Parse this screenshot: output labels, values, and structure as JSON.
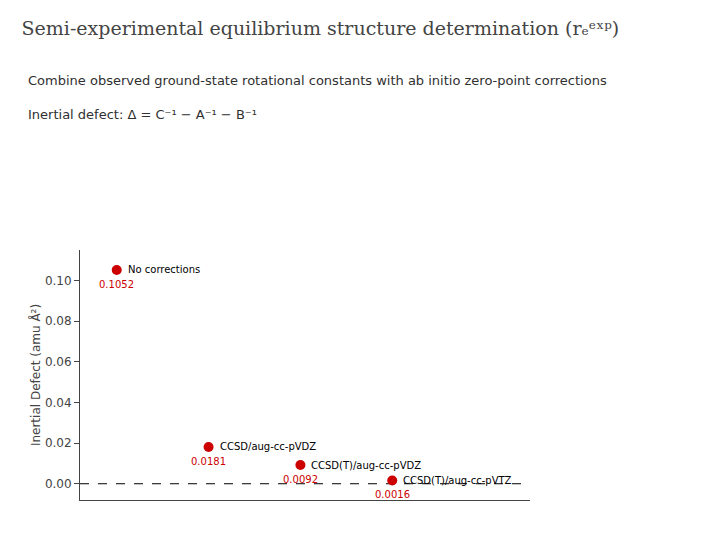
{
  "chart_data": {
    "type": "scatter",
    "title": "Semi-experimental equilibrium structure determination (rₑᵉˣᵖ)",
    "subtitle": [
      "Combine observed ground-state rotational constants with ab initio zero-point corrections",
      "Inertial defect: Δ = C⁻¹ − A⁻¹ − B⁻¹"
    ],
    "x": [
      1,
      2,
      3,
      4
    ],
    "values": [
      0.1052,
      0.0181,
      0.0092,
      0.0016
    ],
    "color": "#cc0000",
    "data_labels": true,
    "annotations": [
      {
        "text": "No corrections",
        "x": 1,
        "y": 0.1052
      },
      {
        "text": "CCSD/aug-cc-pVDZ",
        "x": 2,
        "y": 0.0181
      },
      {
        "text": "CCSD(T)/aug-cc-pVDZ",
        "x": 3,
        "y": 0.0092
      },
      {
        "text": "CCSD(T)/aug-cc-pVTZ",
        "x": 4,
        "y": 0.0016
      }
    ],
    "reference_line": {
      "y": 0.0,
      "line_style": "dashed",
      "color": "#000000"
    },
    "ylabel": "Inertial Defect (amu Å²)",
    "xlim": [
      0.6,
      5.5
    ],
    "ylim": [
      -0.008,
      0.115
    ],
    "yticks": [
      {
        "value": 0.0,
        "label": "0.00"
      },
      {
        "value": 0.02,
        "label": "0.02"
      },
      {
        "value": 0.04,
        "label": "0.04"
      },
      {
        "value": 0.06,
        "label": "0.06"
      },
      {
        "value": 0.08,
        "label": "0.08"
      },
      {
        "value": 0.1,
        "label": "0.10"
      }
    ],
    "tick_labels": "y",
    "grid": false
  }
}
